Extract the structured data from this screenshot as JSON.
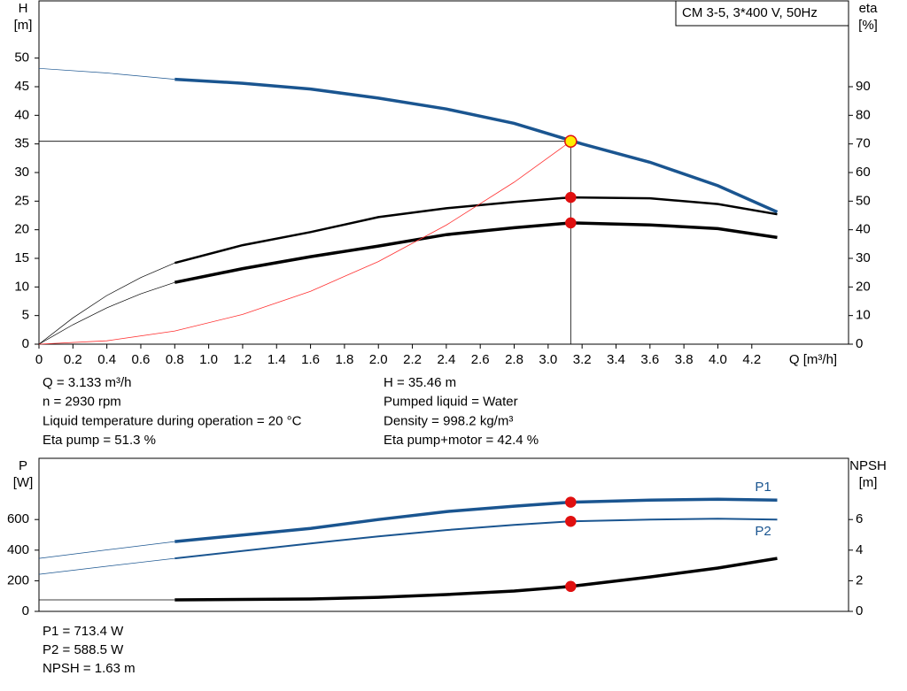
{
  "chart_data": [
    {
      "type": "line",
      "title": "CM 3-5, 3*400 V, 50Hz",
      "ylabel": [
        "H",
        "[m]"
      ],
      "y2label": [
        "eta",
        "[%]"
      ],
      "xlabel": "Q [m³/h]",
      "xlim": [
        0,
        4.77
      ],
      "ylim": [
        0,
        60
      ],
      "y2lim": [
        0,
        120
      ],
      "xticks": [
        0,
        0.2,
        0.4,
        0.6,
        0.8,
        {
          "value": 1,
          "label": "1.0"
        },
        1.2,
        1.4,
        1.6,
        1.8,
        {
          "value": 2,
          "label": "2.0"
        },
        2.2,
        2.4,
        2.6,
        2.8,
        {
          "value": 3,
          "label": "3.0"
        },
        3.2,
        3.4,
        3.6,
        3.8,
        {
          "value": 4,
          "label": "4.0"
        },
        4.2
      ],
      "yticks": [
        0,
        5,
        10,
        15,
        20,
        25,
        30,
        35,
        40,
        45,
        50
      ],
      "y2ticks": [
        0,
        10,
        20,
        30,
        40,
        50,
        60,
        70,
        80,
        90
      ],
      "grid": false,
      "series": [
        {
          "color": "#1a5590",
          "width": 3.5,
          "x": [
            0.8,
            1.2,
            1.6,
            2.0,
            2.4,
            2.8,
            3.2,
            3.6,
            4.0,
            4.35
          ],
          "values": [
            46.3,
            45.6,
            44.6,
            43.0,
            41.1,
            38.6,
            35.0,
            31.8,
            27.7,
            23.1
          ],
          "ext_x": [
            0,
            0.4,
            0.8
          ],
          "ext_values": [
            48.2,
            47.4,
            46.3
          ]
        },
        {
          "color": "#000000",
          "width": 2.5,
          "axis": "y2",
          "x": [
            0.8,
            1.2,
            1.6,
            2.0,
            2.4,
            2.8,
            3.133,
            3.6,
            4.0,
            4.35
          ],
          "values": [
            28.4,
            34.6,
            39.2,
            44.4,
            47.5,
            49.7,
            51.3,
            51.0,
            49.0,
            45.4
          ],
          "ext_x": [
            0,
            0.2,
            0.4,
            0.6,
            0.8
          ],
          "ext_values": [
            0,
            9.2,
            17.0,
            23.3,
            28.4
          ]
        },
        {
          "color": "#000000",
          "width": 3.5,
          "axis": "y2",
          "x": [
            0.8,
            1.2,
            1.6,
            2.0,
            2.4,
            2.8,
            3.133,
            3.6,
            4.0,
            4.35
          ],
          "values": [
            21.6,
            26.4,
            30.6,
            34.3,
            38.3,
            40.7,
            42.4,
            41.7,
            40.4,
            37.3
          ],
          "ext_x": [
            0,
            0.2,
            0.4,
            0.6,
            0.8
          ],
          "ext_values": [
            0,
            6.8,
            12.7,
            17.6,
            21.6
          ]
        },
        {
          "color": "#ff3030",
          "width": 0.8,
          "x": [
            0,
            0.4,
            0.8,
            1.2,
            1.6,
            2.0,
            2.4,
            2.8,
            3.133
          ],
          "values": [
            0,
            0.58,
            2.31,
            5.2,
            9.25,
            14.45,
            20.81,
            28.32,
            35.46
          ]
        }
      ],
      "markers": [
        {
          "x": 3.133,
          "y": 35.46,
          "fill": "#ffee00",
          "color": "#e01010",
          "crosshair": true
        },
        {
          "x": 3.133,
          "y": 51.3,
          "axis": "y2",
          "fill": "#e01010",
          "color": "#e01010"
        },
        {
          "x": 3.133,
          "y": 42.4,
          "axis": "y2",
          "fill": "#e01010",
          "color": "#e01010"
        }
      ]
    },
    {
      "type": "line",
      "ylabel": [
        "P",
        "[W]"
      ],
      "y2label": [
        "NPSH",
        "[m]"
      ],
      "xlim": [
        0,
        4.77
      ],
      "ylim": [
        0,
        1000
      ],
      "y2lim": [
        0,
        10
      ],
      "yticks": [
        0,
        200,
        400,
        600
      ],
      "y2ticks": [
        0,
        2,
        4,
        6
      ],
      "grid": false,
      "series": [
        {
          "name": "P1",
          "color": "#1a5590",
          "width": 3.5,
          "x": [
            0.8,
            1.6,
            2.0,
            2.4,
            2.8,
            3.133,
            3.6,
            4.0,
            4.35
          ],
          "values": [
            456,
            542,
            600,
            652,
            687,
            713.4,
            727,
            733,
            727
          ],
          "ext_x": [
            0,
            0.4,
            0.8
          ],
          "ext_values": [
            346,
            402,
            456
          ]
        },
        {
          "name": "P2",
          "color": "#1a5590",
          "width": 2,
          "x": [
            0.8,
            1.6,
            2.0,
            2.4,
            2.8,
            3.133,
            3.6,
            4.0,
            4.35
          ],
          "values": [
            346,
            444,
            490,
            531,
            565,
            588.5,
            600,
            606,
            600
          ],
          "ext_x": [
            0,
            0.4,
            0.8
          ],
          "ext_values": [
            242,
            295,
            346
          ]
        },
        {
          "color": "#000000",
          "width": 3.5,
          "axis": "y2",
          "x": [
            0.8,
            1.6,
            2.0,
            2.4,
            2.8,
            3.133,
            3.6,
            4.0,
            4.35
          ],
          "values": [
            0.75,
            0.81,
            0.92,
            1.1,
            1.33,
            1.63,
            2.25,
            2.83,
            3.46
          ],
          "ext_x": [
            0,
            0.8
          ],
          "ext_values": [
            0.75,
            0.75
          ]
        }
      ],
      "markers": [
        {
          "x": 3.133,
          "y": 713.4,
          "fill": "#e01010",
          "color": "#e01010"
        },
        {
          "x": 3.133,
          "y": 588.5,
          "fill": "#e01010",
          "color": "#e01010"
        },
        {
          "x": 3.133,
          "y": 1.63,
          "axis": "y2",
          "fill": "#e01010",
          "color": "#e01010"
        }
      ]
    }
  ],
  "info_top": {
    "left": [
      "Q = 3.133 m³/h",
      "n = 2930 rpm",
      "Liquid temperature during operation = 20 °C",
      "Eta pump = 51.3 %"
    ],
    "right": [
      "H = 35.46 m",
      "Pumped liquid = Water",
      "Density = 998.2 kg/m³",
      "Eta pump+motor = 42.4 %"
    ]
  },
  "info_bottom": [
    "P1 = 713.4 W",
    "P2 = 588.5 W",
    "NPSH = 1.63 m"
  ]
}
